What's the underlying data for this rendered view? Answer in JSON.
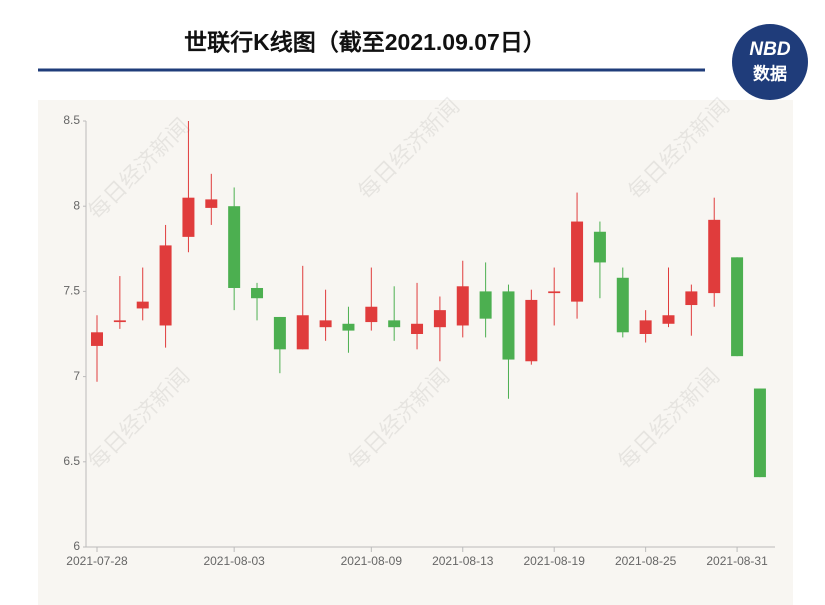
{
  "chart_data": {
    "type": "candlestick",
    "title": "世联行K线图（截至2021.09.07日）",
    "logo_text": "NBD",
    "logo_subtext": "数据",
    "watermark": "每日经济新闻",
    "categories": [
      "2021-07-28",
      null,
      null,
      null,
      null,
      null,
      "2021-08-03",
      null,
      null,
      null,
      null,
      null,
      "2021-08-09",
      null,
      null,
      null,
      "2021-08-13",
      null,
      null,
      null,
      "2021-08-19",
      null,
      null,
      null,
      "2021-08-25",
      null,
      null,
      null,
      "2021-08-31",
      null
    ],
    "series": [
      {
        "color_up": "#e03c3c",
        "color_down": "#4caf50",
        "open": [
          7.18,
          7.32,
          7.4,
          7.3,
          7.82,
          7.99,
          8.0,
          7.52,
          7.35,
          7.16,
          7.29,
          7.31,
          7.32,
          7.33,
          7.25,
          7.29,
          7.3,
          7.5,
          7.5,
          7.09,
          7.49,
          7.44,
          7.85,
          7.58,
          7.25,
          7.31,
          7.42,
          7.49,
          7.7,
          6.93
        ],
        "high": [
          7.36,
          7.59,
          7.64,
          7.89,
          8.5,
          8.19,
          8.11,
          7.55,
          7.35,
          7.65,
          7.51,
          7.41,
          7.64,
          7.53,
          7.55,
          7.47,
          7.68,
          7.67,
          7.54,
          7.51,
          7.64,
          8.08,
          7.91,
          7.64,
          7.39,
          7.64,
          7.54,
          8.05,
          7.7,
          6.93
        ],
        "low": [
          6.97,
          7.28,
          7.33,
          7.17,
          7.73,
          7.89,
          7.39,
          7.33,
          7.02,
          7.16,
          7.21,
          7.14,
          7.27,
          7.21,
          7.16,
          7.09,
          7.23,
          7.23,
          6.87,
          7.07,
          7.3,
          7.34,
          7.46,
          7.23,
          7.2,
          7.29,
          7.24,
          7.41,
          7.12,
          6.41
        ],
        "close": [
          7.26,
          7.33,
          7.44,
          7.77,
          8.05,
          8.04,
          7.52,
          7.46,
          7.16,
          7.36,
          7.33,
          7.27,
          7.41,
          7.29,
          7.31,
          7.39,
          7.53,
          7.34,
          7.1,
          7.45,
          7.5,
          7.91,
          7.67,
          7.26,
          7.33,
          7.36,
          7.5,
          7.92,
          7.12,
          6.41
        ]
      }
    ],
    "ylim": [
      6,
      8.5
    ],
    "yticks": [
      6,
      6.5,
      7,
      7.5,
      8,
      8.5
    ]
  }
}
